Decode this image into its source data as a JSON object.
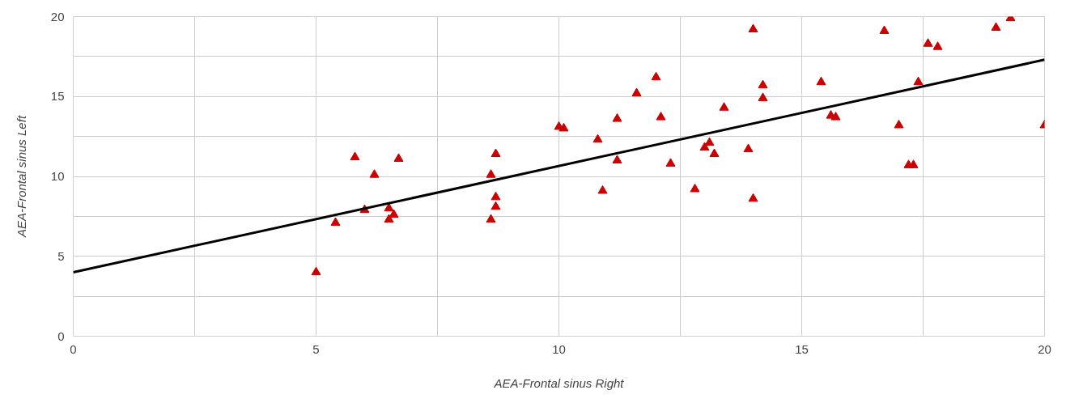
{
  "chart_data": {
    "type": "scatter",
    "xlabel": "AEA-Frontal sinus Right",
    "ylabel": "AEA-Frontal sinus Left",
    "xlim": [
      0,
      20
    ],
    "ylim": [
      0,
      20
    ],
    "xticks": [
      0,
      {
        "value": 2.5,
        "label": null
      },
      5,
      {
        "value": 7.5,
        "label": null
      },
      10,
      {
        "value": 12.5,
        "label": null
      },
      15,
      {
        "value": 17.5,
        "label": null
      },
      20
    ],
    "yticks": [
      0,
      {
        "value": 2.5,
        "label": null
      },
      5,
      {
        "value": 7.5,
        "label": null
      },
      10,
      {
        "value": 12.5,
        "label": null
      },
      15,
      {
        "value": 17.5,
        "label": null
      },
      20
    ],
    "grid": true,
    "series": [
      {
        "marker": "triangle",
        "color": "#cc0000",
        "x": [
          5.0,
          5.4,
          5.8,
          6.0,
          6.2,
          6.5,
          6.5,
          6.6,
          6.7,
          8.6,
          8.7,
          8.7,
          8.6,
          8.7,
          10.0,
          10.1,
          10.8,
          10.9,
          11.2,
          11.2,
          11.6,
          12.0,
          12.1,
          12.3,
          12.8,
          13.0,
          13.1,
          13.2,
          13.4,
          13.9,
          14.0,
          14.0,
          14.2,
          14.2,
          15.4,
          15.6,
          15.7,
          16.7,
          17.0,
          17.2,
          17.3,
          17.4,
          17.6,
          17.8,
          19.0,
          19.3,
          20.0
        ],
        "values": [
          4.0,
          7.1,
          11.2,
          7.9,
          10.1,
          8.0,
          7.3,
          7.6,
          11.1,
          7.3,
          8.7,
          8.1,
          10.1,
          11.4,
          13.1,
          13.0,
          12.3,
          9.1,
          13.6,
          11.0,
          15.2,
          16.2,
          13.7,
          10.8,
          9.2,
          11.8,
          12.1,
          11.4,
          14.3,
          11.7,
          19.2,
          8.6,
          15.7,
          14.9,
          15.9,
          13.8,
          13.7,
          19.1,
          13.2,
          10.7,
          10.7,
          15.9,
          18.3,
          18.1,
          19.3,
          19.9,
          13.2
        ]
      },
      {
        "type": "line",
        "marker": "none",
        "color": "#000000",
        "x": [
          0,
          20
        ],
        "values": [
          4.0,
          17.3
        ]
      }
    ]
  }
}
